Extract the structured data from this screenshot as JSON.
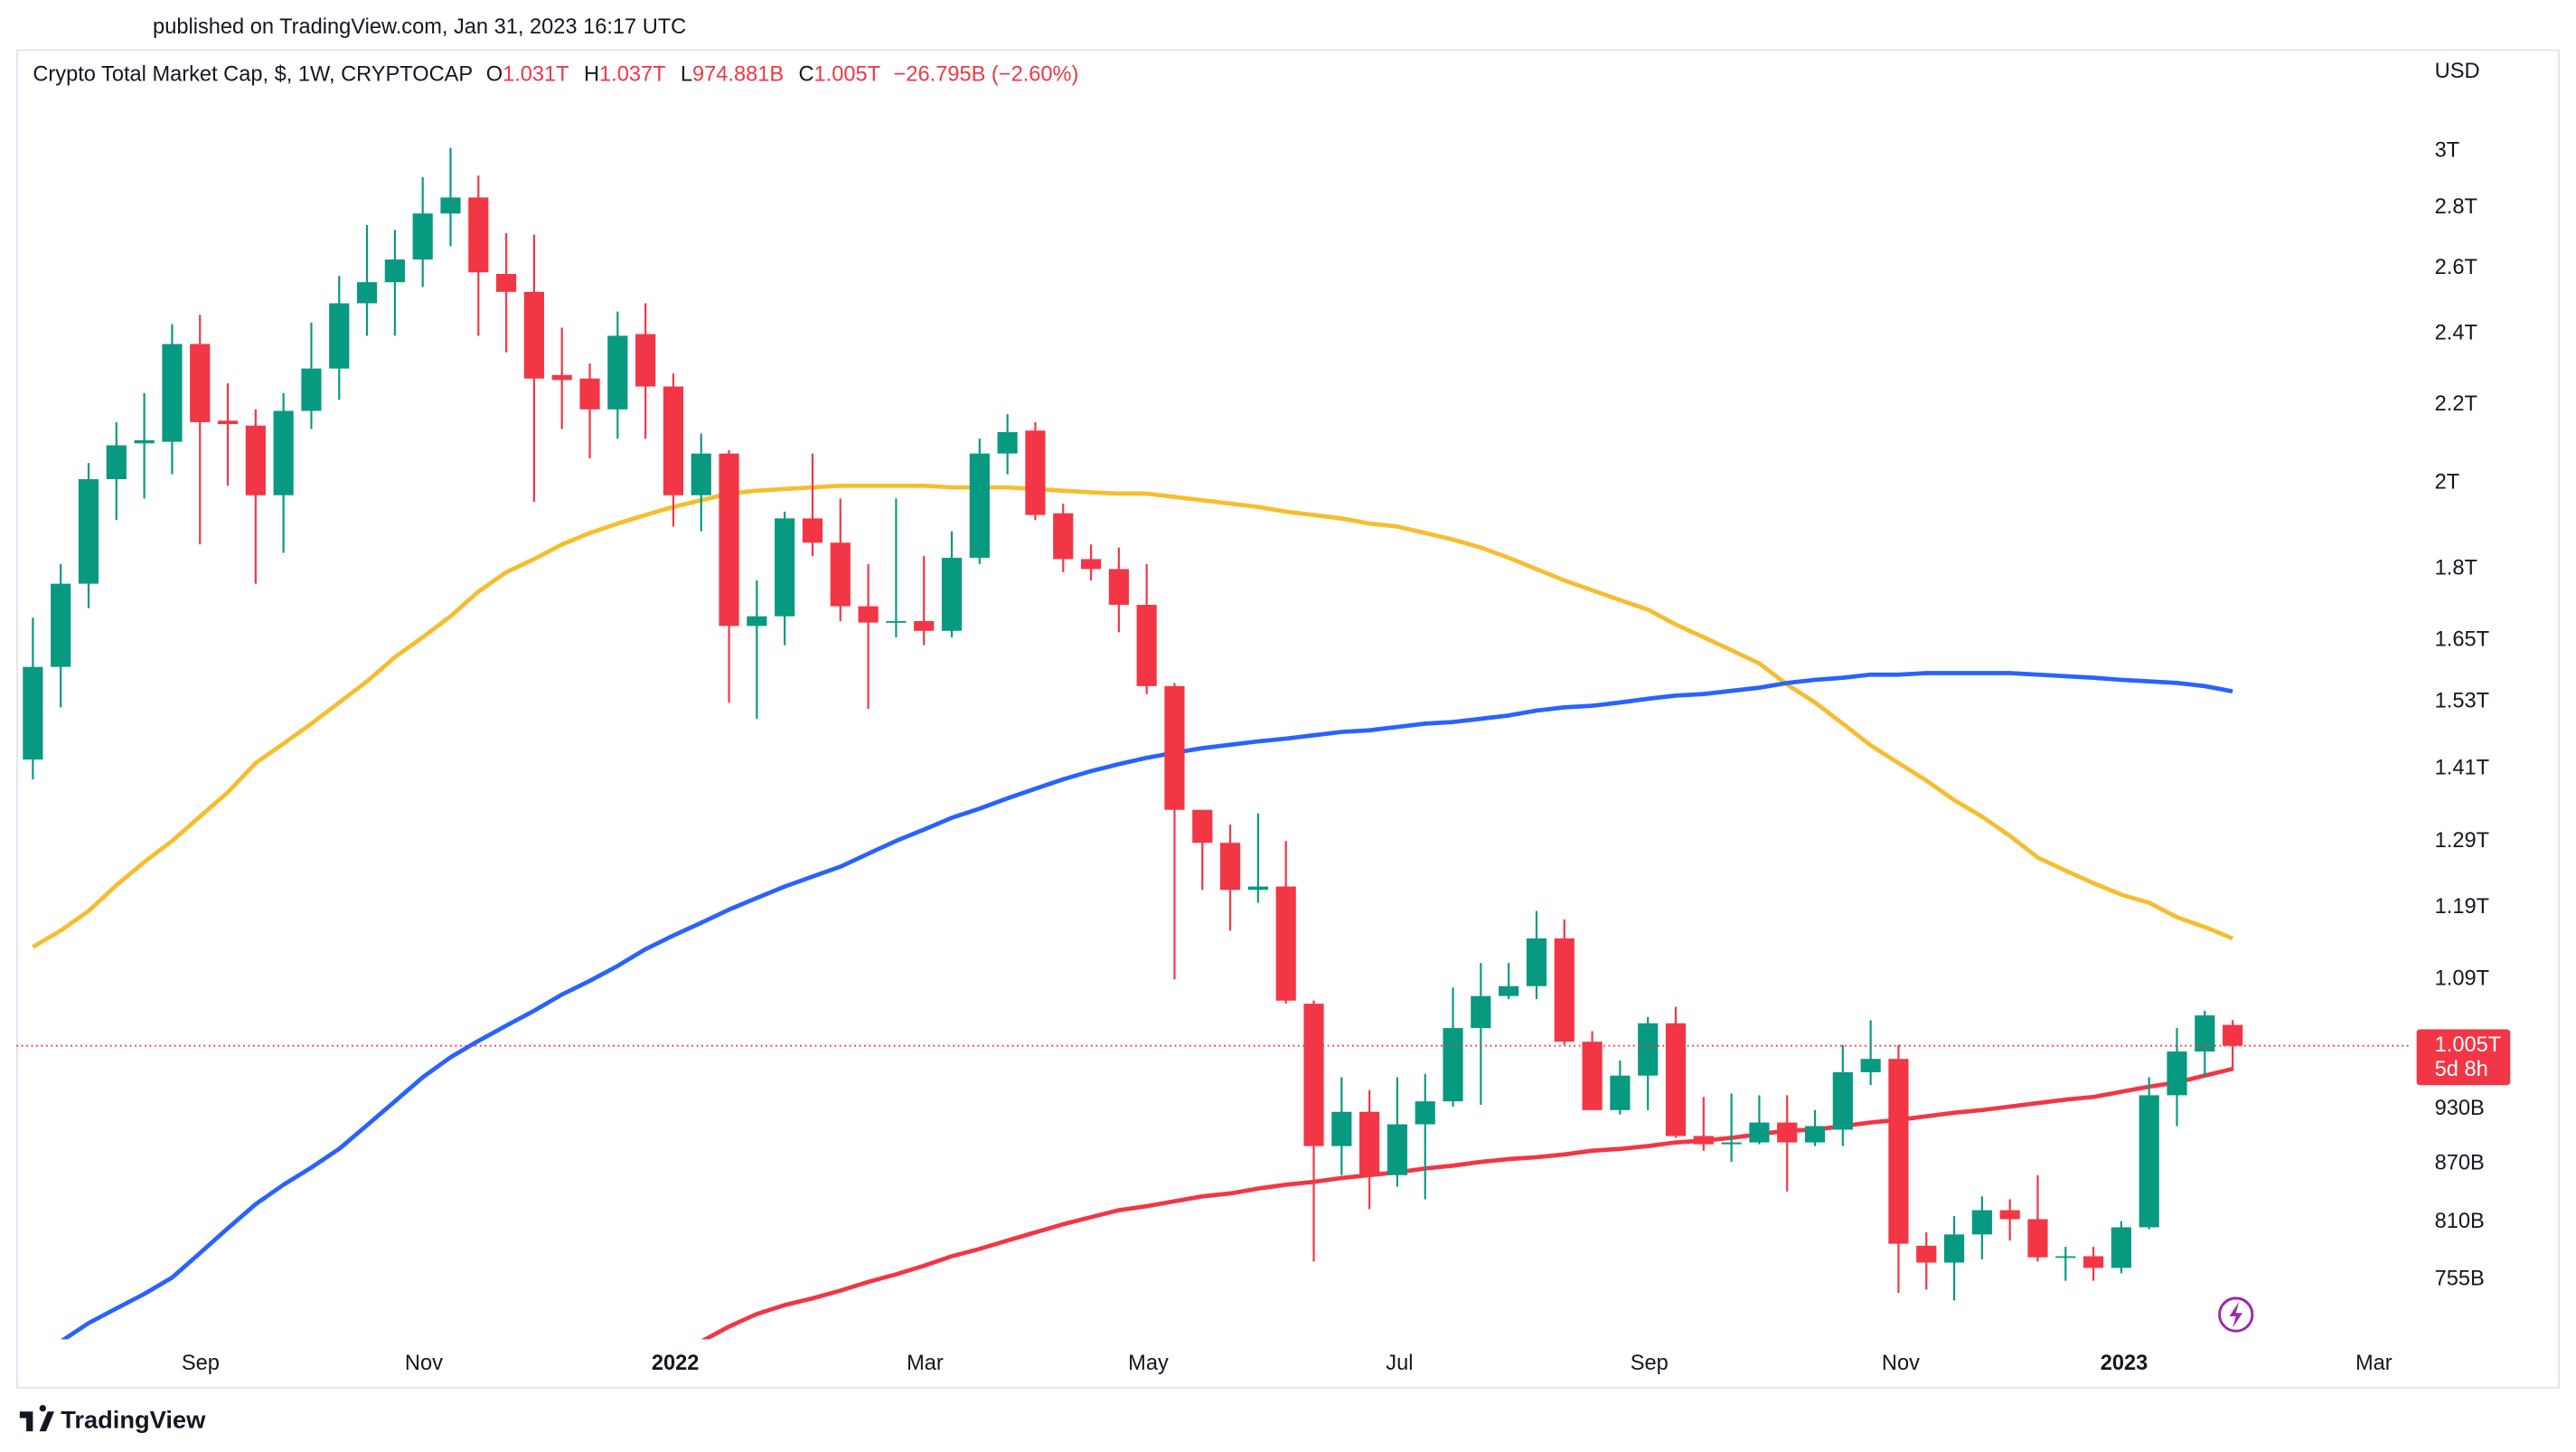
{
  "published": "published on TradingView.com, Jan 31, 2023 16:17 UTC",
  "brand": "TradingView",
  "chart_data": {
    "type": "candlestick",
    "title": "Crypto Total Market Cap, $, 1W, CRYPTOCAP",
    "ohlc": [
      {
        "key": "O",
        "text": "1.031T"
      },
      {
        "key": "H",
        "text": "1.037T"
      },
      {
        "key": "L",
        "text": "974.881B"
      },
      {
        "key": "C",
        "text": "1.005T"
      }
    ],
    "change": "−26.795B (−2.60%)",
    "currency": "USD",
    "last_price_label": "1.005T",
    "countdown": "5d 8h",
    "up_color": "#089981",
    "down_color": "#f23645",
    "log_scale": true,
    "grid": false,
    "open": [
      1426,
      1597,
      1768,
      2009,
      2099,
      2103,
      2370,
      2158,
      2145,
      1970,
      2184,
      2300,
      2491,
      2556,
      2628,
      2780,
      2835,
      2582,
      2526,
      2282,
      2272,
      2188,
      2399,
      2250,
      1970,
      2073,
      1679,
      1699,
      1915,
      1859,
      1720,
      1686,
      1689,
      1669,
      1825,
      2073,
      2132,
      1927,
      1822,
      1800,
      1723,
      1560,
      1341,
      1288,
      1216,
      1221,
      1058,
      889,
      927,
      858,
      913,
      939,
      1027,
      1068,
      1081,
      1146,
      1010,
      929,
      969,
      1033,
      900,
      891,
      893,
      915,
      893,
      907,
      973,
      989,
      787,
      771,
      798,
      822,
      813,
      776,
      777,
      766,
      805,
      946,
      998,
      1031
    ],
    "high": [
      1696,
      1811,
      2049,
      2154,
      2232,
      2428,
      2456,
      2259,
      2188,
      2232,
      2433,
      2576,
      2741,
      2725,
      2906,
      3012,
      2912,
      2714,
      2709,
      2418,
      2314,
      2466,
      2491,
      2286,
      2124,
      2082,
      1775,
      1931,
      2073,
      1962,
      1811,
      1962,
      1829,
      1885,
      2111,
      2175,
      2154,
      1950,
      1855,
      1848,
      1811,
      1566,
      1341,
      1317,
      1335,
      1291,
      1062,
      967,
      952,
      967,
      971,
      1079,
      1112,
      1112,
      1185,
      1173,
      1023,
      987,
      1041,
      1054,
      944,
      948,
      946,
      946,
      929,
      1006,
      1037,
      1006,
      800,
      816,
      836,
      833,
      858,
      786,
      786,
      811,
      967,
      1027,
      1049,
      1037
    ],
    "low": [
      1392,
      1520,
      1716,
      1911,
      1962,
      2021,
      1855,
      1993,
      1768,
      1836,
      2136,
      2214,
      2394,
      2394,
      2541,
      2671,
      2394,
      2346,
      1954,
      2136,
      2061,
      2111,
      2111,
      1896,
      1885,
      1529,
      1499,
      1640,
      1829,
      1689,
      1517,
      1656,
      1640,
      1656,
      1811,
      2021,
      1911,
      1793,
      1775,
      1666,
      1545,
      1090,
      1216,
      1157,
      1197,
      1058,
      772,
      858,
      823,
      846,
      833,
      933,
      935,
      1064,
      1064,
      1006,
      929,
      924,
      929,
      898,
      884,
      872,
      891,
      841,
      889,
      889,
      958,
      743,
      746,
      736,
      774,
      792,
      772,
      754,
      754,
      761,
      803,
      911,
      967,
      974.881
    ],
    "close": [
      1597,
      1768,
      2009,
      2094,
      2107,
      2370,
      2154,
      2149,
      1970,
      2184,
      2300,
      2491,
      2556,
      2628,
      2780,
      2835,
      2587,
      2526,
      2272,
      2268,
      2188,
      2394,
      2250,
      1970,
      2073,
      1679,
      1699,
      1915,
      1859,
      1720,
      1686,
      1689,
      1669,
      1825,
      2073,
      2128,
      1923,
      1822,
      1800,
      1723,
      1560,
      1341,
      1288,
      1216,
      1221,
      1062,
      889,
      927,
      858,
      913,
      939,
      1027,
      1068,
      1081,
      1146,
      1010,
      929,
      969,
      1033,
      900,
      891,
      893,
      915,
      893,
      911,
      973,
      989,
      789,
      771,
      798,
      822,
      813,
      776,
      777,
      766,
      805,
      946,
      998,
      1043,
      1005
    ],
    "overlays": [
      {
        "color": "#f7bd2f",
        "values": [
          1134,
          1157,
          1185,
          1223,
          1258,
          1291,
          1330,
          1370,
          1420,
          1454,
          1490,
          1529,
          1569,
          1616,
          1656,
          1699,
          1751,
          1793,
          1822,
          1855,
          1881,
          1903,
          1923,
          1942,
          1958,
          1974,
          1981,
          1985,
          1989,
          1993,
          1993,
          1993,
          1993,
          1989,
          1989,
          1989,
          1985,
          1981,
          1977,
          1974,
          1974,
          1966,
          1958,
          1950,
          1942,
          1931,
          1923,
          1915,
          1903,
          1896,
          1881,
          1866,
          1848,
          1825,
          1800,
          1775,
          1754,
          1733,
          1713,
          1682,
          1656,
          1630,
          1604,
          1563,
          1529,
          1490,
          1451,
          1420,
          1390,
          1357,
          1330,
          1299,
          1265,
          1245,
          1226,
          1209,
          1197,
          1176,
          1162,
          1146
        ]
      },
      {
        "color": "#2962ff",
        "values": [
          null,
          700,
          716,
          729,
          742,
          757,
          780,
          804,
          828,
          848,
          866,
          886,
          912,
          939,
          967,
          991,
          1011,
          1030,
          1049,
          1070,
          1088,
          1108,
          1131,
          1150,
          1168,
          1187,
          1204,
          1221,
          1236,
          1251,
          1271,
          1291,
          1309,
          1328,
          1343,
          1360,
          1376,
          1392,
          1406,
          1418,
          1429,
          1438,
          1446,
          1452,
          1458,
          1463,
          1469,
          1475,
          1478,
          1484,
          1490,
          1493,
          1499,
          1505,
          1514,
          1520,
          1523,
          1529,
          1536,
          1542,
          1545,
          1551,
          1557,
          1566,
          1572,
          1576,
          1582,
          1582,
          1585,
          1585,
          1585,
          1585,
          1582,
          1579,
          1576,
          1572,
          1569,
          1566,
          1560,
          1550
        ]
      },
      {
        "color": "#f23645",
        "values": [
          null,
          null,
          null,
          null,
          null,
          null,
          null,
          null,
          null,
          null,
          null,
          null,
          null,
          null,
          null,
          null,
          null,
          null,
          null,
          null,
          null,
          null,
          null,
          null,
          700,
          713,
          724,
          732,
          738,
          745,
          753,
          760,
          768,
          777,
          784,
          792,
          800,
          808,
          815,
          822,
          826,
          831,
          836,
          839,
          844,
          848,
          851,
          855,
          858,
          861,
          865,
          868,
          872,
          875,
          877,
          880,
          884,
          886,
          889,
          893,
          895,
          898,
          902,
          906,
          907,
          911,
          915,
          918,
          922,
          926,
          929,
          933,
          937,
          941,
          944,
          950,
          956,
          961,
          969,
          977
        ]
      }
    ],
    "xlim": [
      -0.59,
      85.43
    ],
    "xticks": [
      {
        "value": 6.02,
        "label": "Sep"
      },
      {
        "value": 14.04,
        "label": "Nov"
      },
      {
        "value": 23.07,
        "label": "2022"
      },
      {
        "value": 32.04,
        "label": "Mar"
      },
      {
        "value": 40.06,
        "label": "May"
      },
      {
        "value": 49.08,
        "label": "Jul"
      },
      {
        "value": 58.05,
        "label": "Sep"
      },
      {
        "value": 67.08,
        "label": "Nov"
      },
      {
        "value": 75.1,
        "label": "2023"
      },
      {
        "value": 84.07,
        "label": "Mar"
      }
    ],
    "ylim": [
      702,
      3398
    ],
    "yticks": [
      {
        "value": 755,
        "label": "755B"
      },
      {
        "value": 810,
        "label": "810B"
      },
      {
        "value": 870,
        "label": "870B"
      },
      {
        "value": 930,
        "label": "930B"
      },
      {
        "value": 1090,
        "label": "1.09T"
      },
      {
        "value": 1190,
        "label": "1.19T"
      },
      {
        "value": 1290,
        "label": "1.29T"
      },
      {
        "value": 1410,
        "label": "1.41T"
      },
      {
        "value": 1530,
        "label": "1.53T"
      },
      {
        "value": 1650,
        "label": "1.65T"
      },
      {
        "value": 1800,
        "label": "1.8T"
      },
      {
        "value": 2000,
        "label": "2T"
      },
      {
        "value": 2200,
        "label": "2.2T"
      },
      {
        "value": 2400,
        "label": "2.4T"
      },
      {
        "value": 2600,
        "label": "2.6T"
      },
      {
        "value": 2800,
        "label": "2.8T"
      },
      {
        "value": 3000,
        "label": "3T"
      }
    ]
  }
}
